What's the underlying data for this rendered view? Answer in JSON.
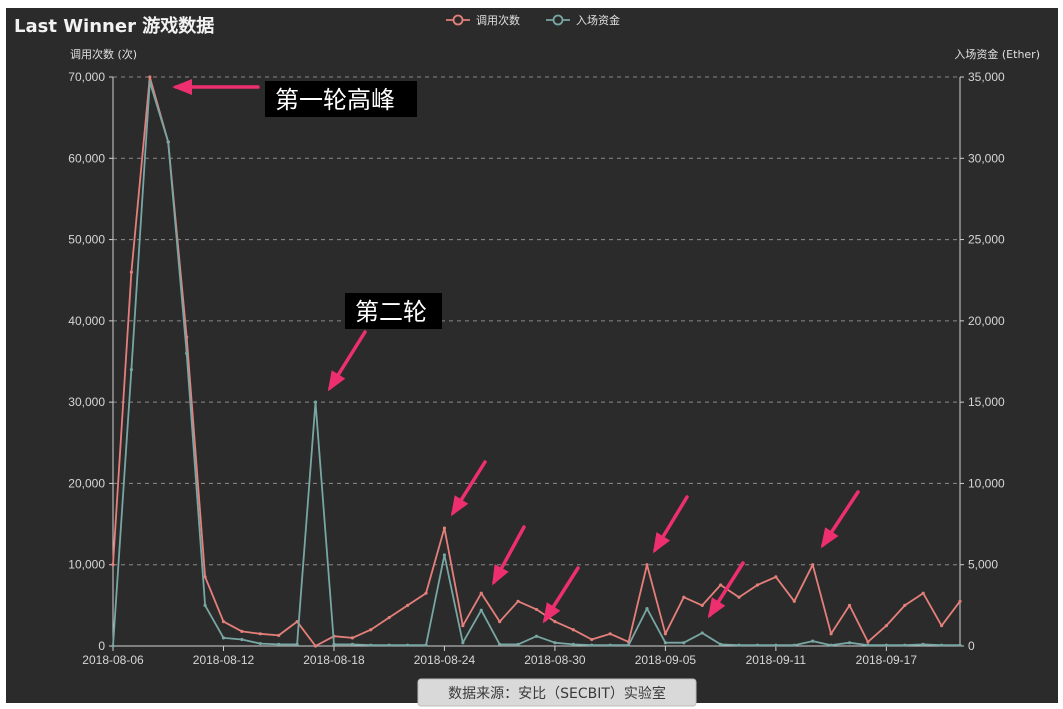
{
  "chart_data": {
    "type": "line",
    "title": "Last Winner 游戏数据",
    "ylabel_left": "调用次数 (次)",
    "ylabel_right": "入场资金 (Ether)",
    "ylim_left": [
      0,
      70000
    ],
    "ylim_right": [
      0,
      35000
    ],
    "y_ticks_left": [
      "0",
      "10,000",
      "20,000",
      "30,000",
      "40,000",
      "50,000",
      "60,000",
      "70,000"
    ],
    "y_ticks_right": [
      "0",
      "5,000",
      "10,000",
      "15,000",
      "20,000",
      "25,000",
      "30,000",
      "35,000"
    ],
    "x_tick_labels": [
      "2018-08-06",
      "2018-08-12",
      "2018-08-18",
      "2018-08-24",
      "2018-08-30",
      "2018-09-05",
      "2018-09-11",
      "2018-09-17"
    ],
    "x": [
      "2018-08-06",
      "2018-08-07",
      "2018-08-08",
      "2018-08-09",
      "2018-08-10",
      "2018-08-11",
      "2018-08-12",
      "2018-08-13",
      "2018-08-14",
      "2018-08-15",
      "2018-08-16",
      "2018-08-17",
      "2018-08-18",
      "2018-08-19",
      "2018-08-20",
      "2018-08-21",
      "2018-08-22",
      "2018-08-23",
      "2018-08-24",
      "2018-08-25",
      "2018-08-26",
      "2018-08-27",
      "2018-08-28",
      "2018-08-29",
      "2018-08-30",
      "2018-08-31",
      "2018-09-01",
      "2018-09-02",
      "2018-09-03",
      "2018-09-04",
      "2018-09-05",
      "2018-09-06",
      "2018-09-07",
      "2018-09-08",
      "2018-09-09",
      "2018-09-10",
      "2018-09-11",
      "2018-09-12",
      "2018-09-13",
      "2018-09-14",
      "2018-09-15",
      "2018-09-16",
      "2018-09-17",
      "2018-09-18",
      "2018-09-19",
      "2018-09-20",
      "2018-09-21"
    ],
    "grid": true,
    "legend_position": "top-center",
    "series": [
      {
        "name": "调用次数",
        "axis": "left",
        "color": "#e57f7a",
        "values": [
          10000,
          46000,
          70000,
          62000,
          38000,
          8500,
          3000,
          1800,
          1500,
          1300,
          3000,
          0,
          1200,
          1000,
          2000,
          3500,
          5000,
          6500,
          14500,
          2500,
          6500,
          3000,
          5500,
          4500,
          3000,
          2000,
          800,
          1500,
          500,
          10000,
          1500,
          6000,
          5000,
          7500,
          6000,
          7500,
          8500,
          5500,
          10000,
          1500,
          5000,
          500,
          2500,
          5000,
          6500,
          2500,
          5500
        ]
      },
      {
        "name": "入场资金",
        "axis": "right",
        "color": "#77a6a3",
        "values": [
          0,
          17000,
          34700,
          31000,
          18000,
          2500,
          500,
          400,
          150,
          100,
          100,
          15000,
          100,
          100,
          50,
          50,
          50,
          50,
          5600,
          200,
          2200,
          100,
          100,
          600,
          200,
          100,
          50,
          50,
          50,
          2300,
          200,
          200,
          800,
          100,
          50,
          50,
          50,
          50,
          300,
          50,
          200,
          50,
          50,
          50,
          100,
          50,
          50
        ]
      }
    ],
    "annotations": [
      "第一轮高峰",
      "第二轮"
    ],
    "source_note": "数据来源：安比（SECBIT）实验室"
  }
}
